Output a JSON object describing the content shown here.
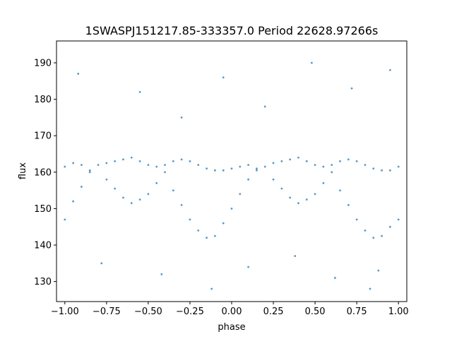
{
  "chart_data": {
    "type": "scatter",
    "title": "1SWASPJ151217.85-333357.0 Period 22628.97266s",
    "xlabel": "phase",
    "ylabel": "flux",
    "xlim": [
      -1.05,
      1.05
    ],
    "ylim": [
      124.5,
      196.0
    ],
    "xticks": [
      -1.0,
      -0.75,
      -0.5,
      -0.25,
      0.0,
      0.25,
      0.5,
      0.75,
      1.0
    ],
    "xtick_labels": [
      "−1.00",
      "−0.75",
      "−0.50",
      "−0.25",
      "0.00",
      "0.25",
      "0.50",
      "0.75",
      "1.00"
    ],
    "yticks": [
      130,
      140,
      150,
      160,
      170,
      180,
      190
    ],
    "ytick_labels": [
      "130",
      "140",
      "150",
      "160",
      "170",
      "180",
      "190"
    ],
    "grid": false,
    "legend": "none",
    "marker_color": "#1f77b4",
    "series": [
      {
        "description": "folded light curve of an eclipsing binary; points plotted with small dot markers",
        "points": [
          [
            -1.0,
            161.5
          ],
          [
            -1.0,
            147.0
          ],
          [
            -0.95,
            162.5
          ],
          [
            -0.95,
            152.0
          ],
          [
            -0.9,
            162.0
          ],
          [
            -0.9,
            156.0
          ],
          [
            -0.85,
            160.5
          ],
          [
            -0.85,
            160.0
          ],
          [
            -0.8,
            162.0
          ],
          [
            -0.75,
            162.5
          ],
          [
            -0.75,
            158.0
          ],
          [
            -0.7,
            163.0
          ],
          [
            -0.7,
            155.5
          ],
          [
            -0.65,
            163.5
          ],
          [
            -0.65,
            153.0
          ],
          [
            -0.6,
            164.0
          ],
          [
            -0.6,
            151.5
          ],
          [
            -0.55,
            163.0
          ],
          [
            -0.55,
            152.5
          ],
          [
            -0.5,
            162.0
          ],
          [
            -0.5,
            154.0
          ],
          [
            -0.45,
            161.5
          ],
          [
            -0.45,
            157.0
          ],
          [
            -0.4,
            162.0
          ],
          [
            -0.4,
            160.0
          ],
          [
            -0.35,
            163.0
          ],
          [
            -0.35,
            155.0
          ],
          [
            -0.3,
            163.5
          ],
          [
            -0.3,
            151.0
          ],
          [
            -0.25,
            163.0
          ],
          [
            -0.25,
            147.0
          ],
          [
            -0.2,
            162.0
          ],
          [
            -0.2,
            144.0
          ],
          [
            -0.15,
            161.0
          ],
          [
            -0.15,
            142.0
          ],
          [
            -0.1,
            160.5
          ],
          [
            -0.1,
            142.5
          ],
          [
            -0.05,
            160.5
          ],
          [
            -0.05,
            146.0
          ],
          [
            0.0,
            161.0
          ],
          [
            0.0,
            150.0
          ],
          [
            0.05,
            161.5
          ],
          [
            0.05,
            154.0
          ],
          [
            0.1,
            162.0
          ],
          [
            0.1,
            158.0
          ],
          [
            0.15,
            161.0
          ],
          [
            0.15,
            160.5
          ],
          [
            0.2,
            161.5
          ],
          [
            0.25,
            162.5
          ],
          [
            0.25,
            158.0
          ],
          [
            0.3,
            163.0
          ],
          [
            0.3,
            155.5
          ],
          [
            0.35,
            163.5
          ],
          [
            0.35,
            153.0
          ],
          [
            0.4,
            164.0
          ],
          [
            0.4,
            151.5
          ],
          [
            0.45,
            163.0
          ],
          [
            0.45,
            152.5
          ],
          [
            0.5,
            162.0
          ],
          [
            0.5,
            154.0
          ],
          [
            0.55,
            161.5
          ],
          [
            0.55,
            157.0
          ],
          [
            0.6,
            162.0
          ],
          [
            0.6,
            160.0
          ],
          [
            0.65,
            163.0
          ],
          [
            0.65,
            155.0
          ],
          [
            0.7,
            163.5
          ],
          [
            0.7,
            151.0
          ],
          [
            0.75,
            163.0
          ],
          [
            0.75,
            147.0
          ],
          [
            0.8,
            162.0
          ],
          [
            0.8,
            144.0
          ],
          [
            0.85,
            161.0
          ],
          [
            0.85,
            142.0
          ],
          [
            0.9,
            160.5
          ],
          [
            0.9,
            142.5
          ],
          [
            0.95,
            160.5
          ],
          [
            0.95,
            145.0
          ],
          [
            1.0,
            161.5
          ],
          [
            1.0,
            147.0
          ],
          [
            -0.92,
            187.0
          ],
          [
            -0.55,
            182.0
          ],
          [
            -0.3,
            175.0
          ],
          [
            -0.05,
            186.0
          ],
          [
            0.2,
            178.0
          ],
          [
            0.48,
            190.0
          ],
          [
            0.72,
            183.0
          ],
          [
            0.95,
            188.0
          ],
          [
            -0.78,
            135.0
          ],
          [
            -0.42,
            132.0
          ],
          [
            0.1,
            134.0
          ],
          [
            0.38,
            137.0
          ],
          [
            0.62,
            131.0
          ],
          [
            0.88,
            133.0
          ],
          [
            -0.12,
            128.0
          ],
          [
            0.83,
            128.0
          ]
        ]
      }
    ]
  }
}
